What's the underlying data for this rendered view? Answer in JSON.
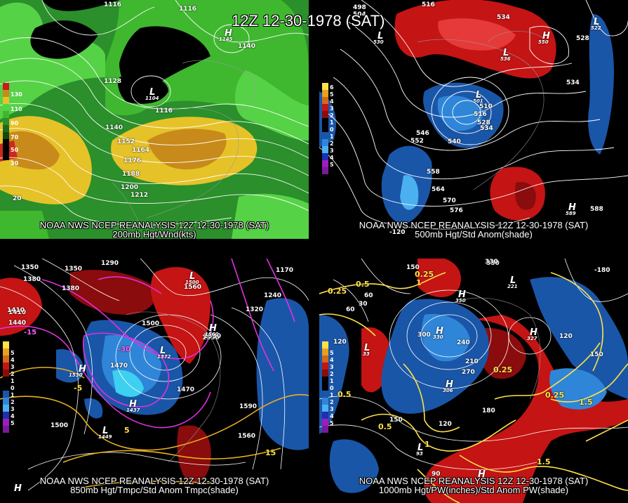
{
  "main_title": "12Z 12-30-1978 (SAT)",
  "panels": {
    "tl": {
      "caption1": "NOAA NWS NCEP REANALYSIS 12Z 12-30-1978 (SAT)",
      "caption2": "200mb Hgt/Wnd(kts)",
      "legend": [
        "130",
        "110",
        "90",
        "70",
        "50",
        "30"
      ],
      "contour_labels": [
        "1116",
        "1116",
        "1140",
        "1128",
        "1116",
        "1140",
        "1152",
        "1164",
        "1176",
        "1188",
        "1200",
        "1212",
        "20"
      ],
      "centers": [
        {
          "type": "H",
          "value": "1145"
        },
        {
          "type": "L",
          "value": "1104"
        }
      ]
    },
    "tr": {
      "caption1": "NOAA NWS NCEP REANALYSIS 12Z 12-30-1978 (SAT)",
      "caption2": "500mb Hgt/Std Anom(shade)",
      "legend": [
        "6",
        "5",
        "4",
        "3",
        "2",
        "1",
        "0",
        "1",
        "2",
        "3",
        "4",
        "5"
      ],
      "contour_labels": [
        "516",
        "534",
        "528",
        "534",
        "510",
        "516",
        "528",
        "534",
        "546",
        "552",
        "540",
        "558",
        "564",
        "570",
        "576",
        "588",
        "498",
        "504",
        "-120"
      ],
      "centers": [
        {
          "type": "L",
          "value": "530"
        },
        {
          "type": "H",
          "value": "550"
        },
        {
          "type": "L",
          "value": "536"
        },
        {
          "type": "L",
          "value": "522"
        },
        {
          "type": "L",
          "value": "501"
        },
        {
          "type": "H",
          "value": "589"
        }
      ]
    },
    "bl": {
      "caption1": "NOAA NWS NCEP REANALYSIS 12Z 12-30-1978 (SAT)",
      "caption2": "850mb Hgt/Tmpc/Std Anom Tmpc(shade)",
      "legend": [
        "5",
        "4",
        "3",
        "2",
        "1",
        "0",
        "1",
        "2",
        "3",
        "4",
        "5"
      ],
      "contour_labels": [
        "1290",
        "1350",
        "1380",
        "1410",
        "1440",
        "1470",
        "1500",
        "1530",
        "1560",
        "1590",
        "1470",
        "1410",
        "1380",
        "1350",
        "1320",
        "1170",
        "1240",
        "1500",
        "1560",
        "1530",
        "-30",
        "-15",
        "-5",
        "5",
        "15"
      ],
      "centers": [
        {
          "type": "H",
          "value": "1530"
        },
        {
          "type": "L",
          "value": "1500"
        },
        {
          "type": "H",
          "value": "1560"
        },
        {
          "type": "L",
          "value": "1372"
        },
        {
          "type": "H",
          "value": "1437"
        },
        {
          "type": "L",
          "value": "1449"
        },
        {
          "type": "H",
          "value": ""
        }
      ]
    },
    "br": {
      "caption1": "NOAA NWS NCEP REANALYSIS 12Z 12-30-1978 (SAT)",
      "caption2": "1000mb Hgt/PW(inches)/Std Anom PW(shade)",
      "legend": [
        "5",
        "4",
        "3",
        "2",
        "1",
        "0",
        "1",
        "2",
        "3",
        "4",
        "5"
      ],
      "contour_labels": [
        "330",
        "150",
        "60",
        "30",
        "120",
        "210",
        "240",
        "270",
        "300",
        "180",
        "150",
        "120",
        "90",
        "60",
        "330",
        "-180",
        "120",
        "150"
      ],
      "yellow_labels": [
        "0.25",
        "0.5",
        "0.25",
        "0.25",
        "0.5",
        "0.5",
        "1",
        "1.5",
        "1.5",
        "0.25",
        "1"
      ],
      "centers": [
        {
          "type": "H",
          "value": "350"
        },
        {
          "type": "L",
          "value": "33"
        },
        {
          "type": "H",
          "value": "330"
        },
        {
          "type": "L",
          "value": "221"
        },
        {
          "type": "H",
          "value": "327"
        },
        {
          "type": "H",
          "value": "306"
        },
        {
          "type": "L",
          "value": "93"
        },
        {
          "type": "H",
          "value": ""
        }
      ]
    }
  }
}
